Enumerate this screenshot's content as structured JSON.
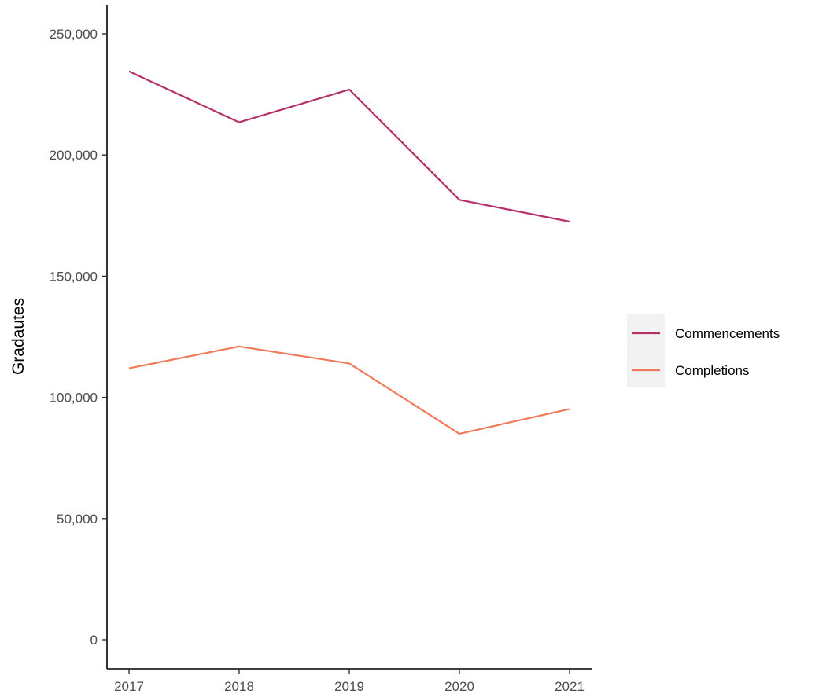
{
  "chart_data": {
    "type": "line",
    "title": "",
    "xlabel": "",
    "ylabel": "Gradautes",
    "x": [
      2017,
      2018,
      2019,
      2020,
      2021
    ],
    "x_ticks": [
      "2017",
      "2018",
      "2019",
      "2020",
      "2021"
    ],
    "ylim": [
      -12000,
      262000
    ],
    "y_ticks": [
      0,
      50000,
      100000,
      150000,
      200000,
      250000
    ],
    "y_tick_labels": [
      "0",
      "50,000",
      "100,000",
      "150,000",
      "200,000",
      "250,000"
    ],
    "grid": false,
    "legend_position": "right",
    "series": [
      {
        "name": "Commencements",
        "color": "#b5306a",
        "values": [
          234500,
          213500,
          227000,
          181500,
          172500
        ]
      },
      {
        "name": "Completions",
        "color": "#f07a5a",
        "values": [
          112000,
          121000,
          114000,
          85000,
          95200
        ]
      }
    ]
  }
}
